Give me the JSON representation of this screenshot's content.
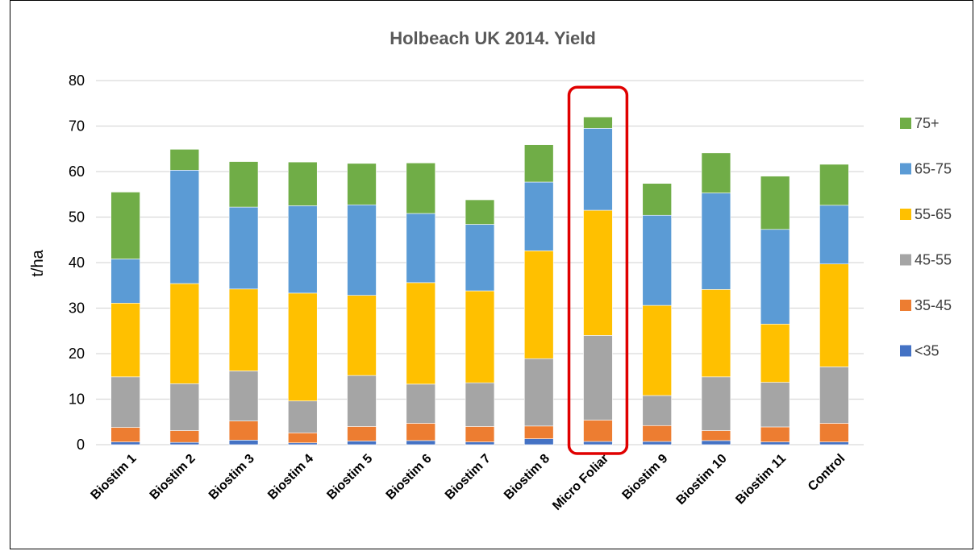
{
  "chart_data": {
    "type": "bar",
    "stacked": true,
    "title": "Holbeach UK 2014. Yield",
    "xlabel": "",
    "ylabel": "t/ha",
    "ylim": [
      0,
      80
    ],
    "yticks": [
      0,
      10,
      20,
      30,
      40,
      50,
      60,
      70,
      80
    ],
    "grid": true,
    "legend_position": "right",
    "categories": [
      "Biostim 1",
      "Biostim 2",
      "Biostim 3",
      "Biostim 4",
      "Biostim 5",
      "Biostim 6",
      "Biostim 7",
      "Biostim 8",
      "Micro Foliar",
      "Biostim 9",
      "Biostim 10",
      "Biostim 11",
      "Control"
    ],
    "series": [
      {
        "name": "<35",
        "color": "#4472C4",
        "values": [
          0.6,
          0.5,
          1.0,
          0.4,
          0.8,
          0.9,
          0.6,
          1.3,
          0.7,
          0.7,
          0.9,
          0.6,
          0.6
        ]
      },
      {
        "name": "35-45",
        "color": "#ED7D31",
        "values": [
          3.2,
          2.6,
          4.2,
          2.2,
          3.2,
          3.8,
          3.4,
          2.8,
          4.7,
          3.5,
          2.2,
          3.3,
          4.1
        ]
      },
      {
        "name": "45-55",
        "color": "#A5A5A5",
        "values": [
          11.1,
          10.3,
          11.0,
          7.0,
          11.2,
          8.6,
          9.6,
          14.8,
          18.6,
          6.6,
          11.8,
          9.8,
          12.4
        ]
      },
      {
        "name": "55-65",
        "color": "#FFC000",
        "values": [
          16.2,
          22.0,
          18.0,
          23.7,
          17.6,
          22.3,
          20.2,
          23.7,
          27.5,
          19.8,
          19.2,
          12.8,
          22.6
        ]
      },
      {
        "name": "65-75",
        "color": "#5B9BD5",
        "values": [
          9.7,
          24.9,
          18.0,
          19.2,
          19.9,
          15.2,
          14.6,
          15.1,
          18.0,
          19.8,
          21.2,
          20.8,
          12.9
        ]
      },
      {
        "name": "75+",
        "color": "#70AD47",
        "values": [
          14.7,
          4.6,
          10.0,
          9.6,
          9.1,
          11.1,
          5.4,
          8.2,
          2.5,
          7.0,
          8.8,
          11.7,
          9.0
        ]
      }
    ],
    "highlight": {
      "category": "Micro Foliar",
      "color": "#E00000"
    }
  }
}
